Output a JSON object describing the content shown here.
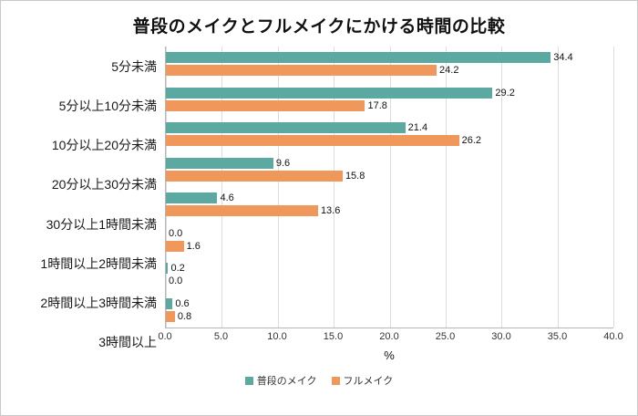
{
  "chart_data": {
    "type": "bar",
    "orientation": "horizontal",
    "title": "普段のメイクとフルメイクにかける時間の比較",
    "xlabel": "%",
    "xlim": [
      0,
      40
    ],
    "xticks": [
      0,
      5,
      10,
      15,
      20,
      25,
      30,
      35,
      40
    ],
    "grid": true,
    "legend_position": "bottom",
    "categories": [
      "5分未満",
      "5分以上10分未満",
      "10分以上20分未満",
      "20分以上30分未満",
      "30分以上1時間未満",
      "1時間以上2時間未満",
      "2時間以上3時間未満",
      "3時間以上"
    ],
    "series": [
      {
        "name": "普段のメイク",
        "color": "#5BA9A0",
        "values": [
          34.4,
          29.2,
          21.4,
          9.6,
          4.6,
          0.0,
          0.2,
          0.6
        ]
      },
      {
        "name": "フルメイク",
        "color": "#F0975B",
        "values": [
          24.2,
          17.8,
          26.2,
          15.8,
          13.6,
          1.6,
          0.0,
          0.8
        ]
      }
    ]
  }
}
